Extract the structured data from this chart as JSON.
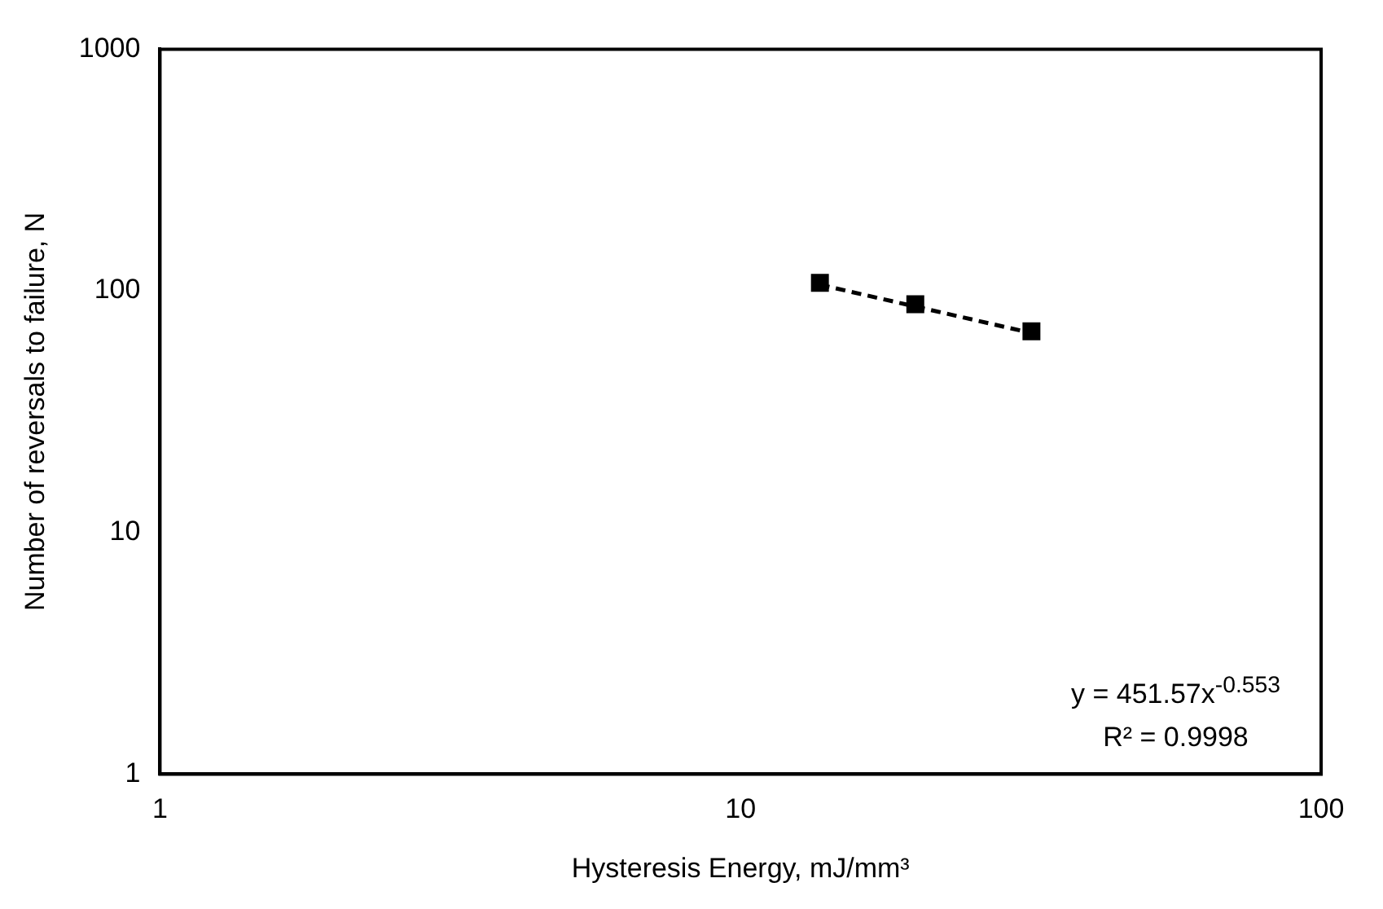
{
  "chart_data": {
    "type": "scatter",
    "xlabel": "Hysteresis Energy, mJ/mm³",
    "ylabel": "Number of reversals to failure, N",
    "log": "xy",
    "xlim": [
      1,
      100
    ],
    "ylim": [
      1,
      1000
    ],
    "xticks": [
      1,
      10,
      100
    ],
    "yticks": [
      1,
      10,
      100,
      1000
    ],
    "grid": false,
    "legend": false,
    "marker": "square",
    "series": [
      {
        "type": "scatter",
        "color": "#000000",
        "x": [
          13.7,
          20,
          31.7
        ],
        "values": [
          108,
          88,
          68
        ]
      },
      {
        "type": "line",
        "color": "#000000",
        "line_style": "dashed",
        "marker": "none",
        "x": [
          13.7,
          31.7
        ],
        "values": [
          106,
          66.9
        ]
      }
    ],
    "annotations": [
      "y = 451.57x$^{-0.553}$",
      "R² = 0.9998"
    ]
  }
}
